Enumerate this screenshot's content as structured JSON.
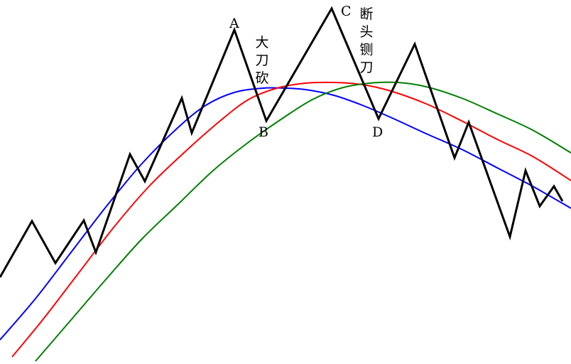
{
  "chart_data": {
    "type": "line",
    "title": "",
    "xlabel": "",
    "ylabel": "",
    "grid": false,
    "series": [
      {
        "role": "price",
        "color": "#000000",
        "points": [
          [
            0,
            390
          ],
          [
            45,
            311
          ],
          [
            78,
            370
          ],
          [
            118,
            310
          ],
          [
            135,
            355
          ],
          [
            183,
            217
          ],
          [
            204,
            255
          ],
          [
            256,
            138
          ],
          [
            270,
            187
          ],
          [
            330,
            42
          ],
          [
            375,
            170
          ],
          [
            467,
            12
          ],
          [
            533,
            167
          ],
          [
            584,
            62
          ],
          [
            640,
            222
          ],
          [
            660,
            172
          ],
          [
            718,
            333
          ],
          [
            740,
            240
          ],
          [
            760,
            290
          ],
          [
            780,
            262
          ],
          [
            792,
            283
          ]
        ]
      },
      {
        "role": "moving-average-1",
        "color": "#0000ff",
        "points": [
          [
            0,
            478
          ],
          [
            50,
            420
          ],
          [
            100,
            355
          ],
          [
            150,
            290
          ],
          [
            200,
            230
          ],
          [
            250,
            180
          ],
          [
            290,
            148
          ],
          [
            330,
            130
          ],
          [
            370,
            124
          ],
          [
            400,
            124
          ],
          [
            430,
            126
          ],
          [
            470,
            134
          ],
          [
            510,
            148
          ],
          [
            550,
            165
          ],
          [
            600,
            188
          ],
          [
            650,
            210
          ],
          [
            700,
            236
          ],
          [
            750,
            262
          ],
          [
            804,
            293
          ]
        ]
      },
      {
        "role": "moving-average-2",
        "color": "#ff0000",
        "points": [
          [
            17,
            502
          ],
          [
            60,
            450
          ],
          [
            110,
            385
          ],
          [
            160,
            320
          ],
          [
            210,
            262
          ],
          [
            260,
            214
          ],
          [
            310,
            170
          ],
          [
            350,
            140
          ],
          [
            390,
            124
          ],
          [
            430,
            117
          ],
          [
            470,
            116
          ],
          [
            510,
            119
          ],
          [
            550,
            128
          ],
          [
            600,
            146
          ],
          [
            650,
            170
          ],
          [
            700,
            196
          ],
          [
            750,
            220
          ],
          [
            804,
            254
          ]
        ]
      },
      {
        "role": "moving-average-3",
        "color": "#008000",
        "points": [
          [
            50,
            508
          ],
          [
            100,
            450
          ],
          [
            150,
            392
          ],
          [
            200,
            336
          ],
          [
            250,
            288
          ],
          [
            300,
            240
          ],
          [
            350,
            200
          ],
          [
            400,
            165
          ],
          [
            440,
            140
          ],
          [
            480,
            124
          ],
          [
            520,
            117
          ],
          [
            560,
            116
          ],
          [
            600,
            122
          ],
          [
            650,
            138
          ],
          [
            700,
            160
          ],
          [
            750,
            183
          ],
          [
            804,
            215
          ]
        ]
      }
    ],
    "point_labels": [
      {
        "text": "A",
        "x": 330,
        "y": 42
      },
      {
        "text": "B",
        "x": 375,
        "y": 170
      },
      {
        "text": "C",
        "x": 467,
        "y": 12
      },
      {
        "text": "D",
        "x": 533,
        "y": 167
      }
    ],
    "annotations": [
      {
        "text": "大刀砍",
        "near": "A-B"
      },
      {
        "text": "断头铡刀",
        "near": "C-D"
      }
    ]
  }
}
